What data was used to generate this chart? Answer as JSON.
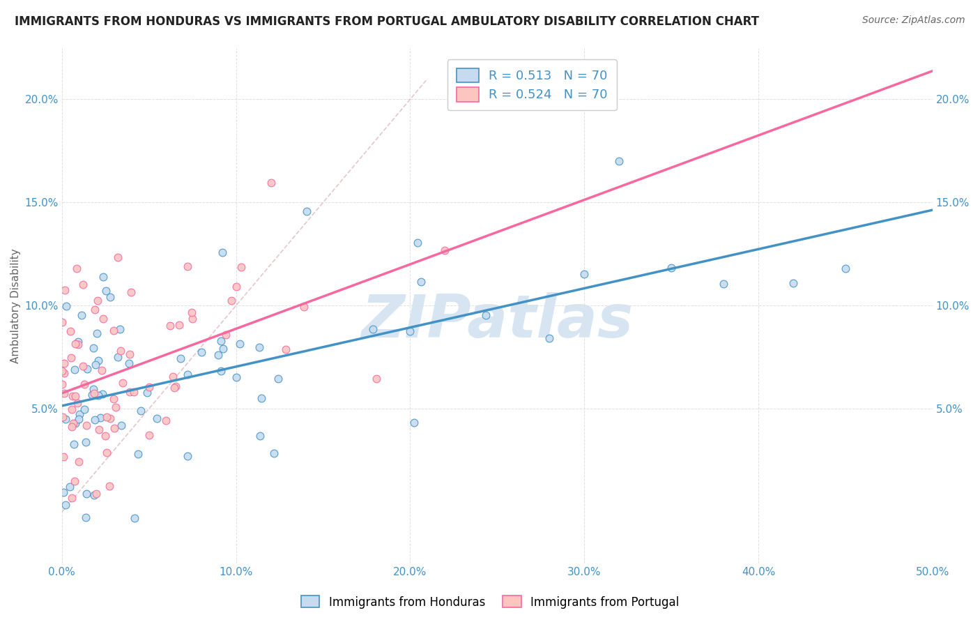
{
  "title": "IMMIGRANTS FROM HONDURAS VS IMMIGRANTS FROM PORTUGAL AMBULATORY DISABILITY CORRELATION CHART",
  "source_text": "Source: ZipAtlas.com",
  "ylabel": "Ambulatory Disability",
  "xlim": [
    0.0,
    0.5
  ],
  "ylim": [
    -0.025,
    0.225
  ],
  "xticks": [
    0.0,
    0.1,
    0.2,
    0.3,
    0.4,
    0.5
  ],
  "xticklabels": [
    "0.0%",
    "10.0%",
    "20.0%",
    "30.0%",
    "40.0%",
    "50.0%"
  ],
  "yticks": [
    0.05,
    0.1,
    0.15,
    0.2
  ],
  "yticklabels": [
    "5.0%",
    "10.0%",
    "15.0%",
    "20.0%"
  ],
  "R_honduras": 0.513,
  "N_honduras": 70,
  "R_portugal": 0.524,
  "N_portugal": 70,
  "blue_fill": "#c6dbef",
  "blue_edge": "#4292c6",
  "pink_fill": "#fcc5c0",
  "pink_edge": "#f768a1",
  "trend_blue": "#4292c6",
  "trend_pink": "#f768a1",
  "axis_tick_color": "#4292c6",
  "watermark": "ZIPatlas",
  "watermark_color": "#c6dbef",
  "legend_label_blue": "Immigrants from Honduras",
  "legend_label_pink": "Immigrants from Portugal",
  "background_color": "#ffffff",
  "grid_color": "#e0e0e0",
  "ref_line_color": "#cccccc"
}
